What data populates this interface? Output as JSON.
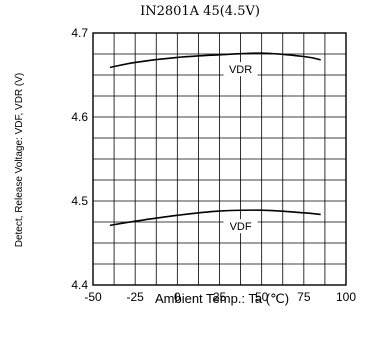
{
  "chart_data": {
    "type": "line",
    "title": "IN2801A 45(4.5V)",
    "xlabel": "Ambient Temp.: Ta (℃)",
    "ylabel": "Detect, Release Voltage: VDF, VDR (V)",
    "xlim": [
      -50,
      100
    ],
    "ylim": [
      4.4,
      4.7
    ],
    "x_ticks": [
      "-50",
      "-25",
      "0",
      "25",
      "50",
      "75",
      "100"
    ],
    "y_ticks": [
      "4.4",
      "4.5",
      "4.6",
      "4.7"
    ],
    "grid": true,
    "series": [
      {
        "name": "VDR",
        "x": [
          -40,
          -25,
          0,
          25,
          50,
          75,
          85
        ],
        "y": [
          4.659,
          4.665,
          4.671,
          4.674,
          4.676,
          4.672,
          4.668
        ]
      },
      {
        "name": "VDF",
        "x": [
          -40,
          -25,
          0,
          25,
          50,
          75,
          85
        ],
        "y": [
          4.471,
          4.476,
          4.483,
          4.488,
          4.489,
          4.486,
          4.484
        ]
      }
    ]
  }
}
